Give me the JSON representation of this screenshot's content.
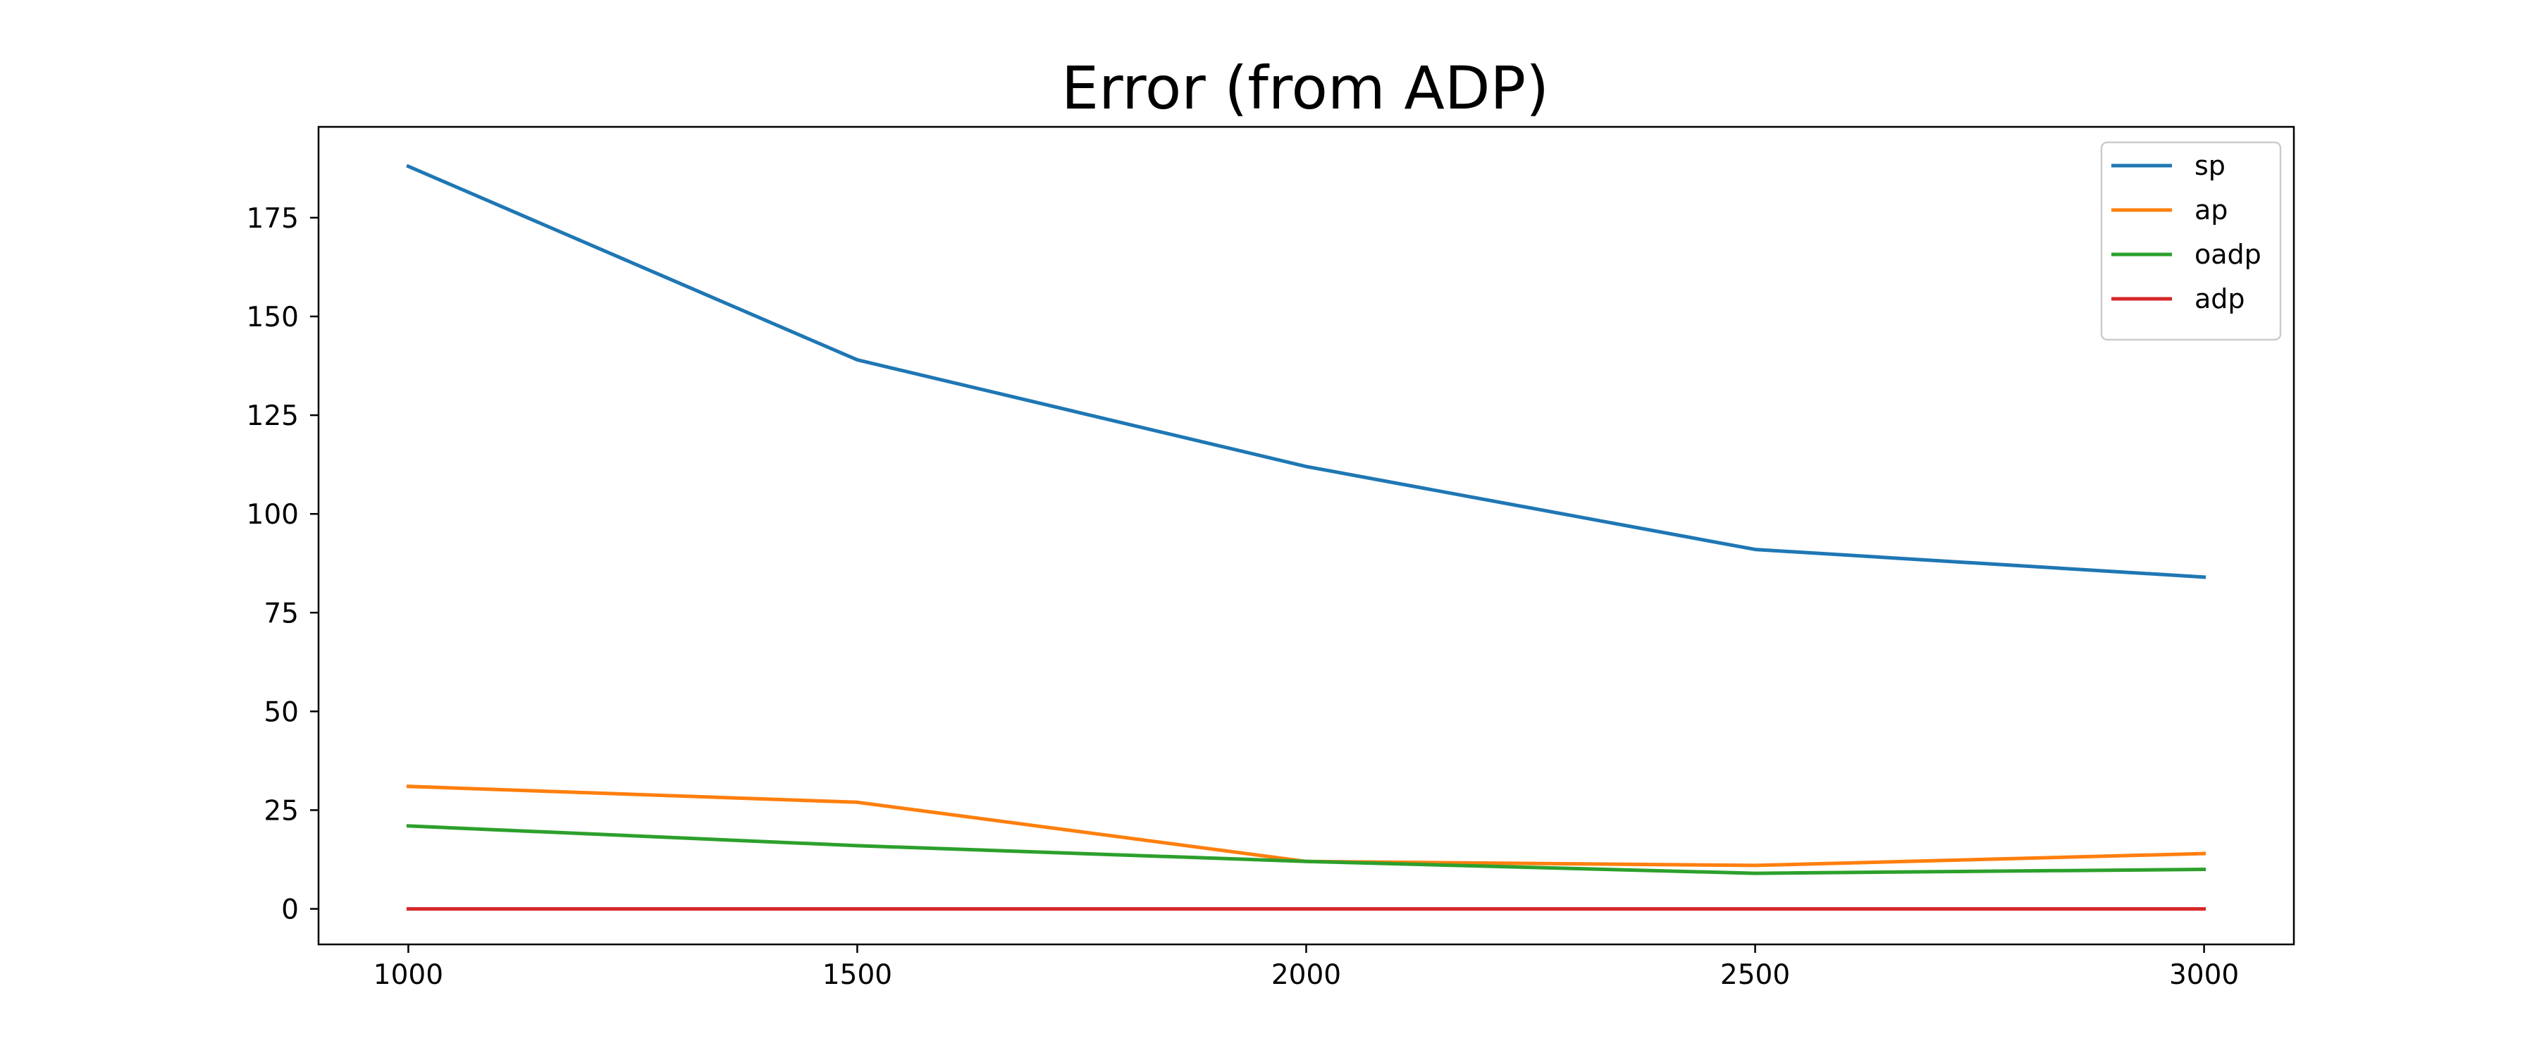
{
  "chart_data": {
    "type": "line",
    "title": "Error (from ADP)",
    "xlabel": "",
    "ylabel": "",
    "x": [
      1000,
      1500,
      2000,
      2500,
      3000
    ],
    "xlim": [
      900,
      3100
    ],
    "ylim": [
      -9,
      198
    ],
    "xticks": [
      "1000",
      "1500",
      "2000",
      "2500",
      "3000"
    ],
    "yticks": [
      "0",
      "25",
      "50",
      "75",
      "100",
      "125",
      "150",
      "175"
    ],
    "grid": false,
    "legend_position": "top-right",
    "series": [
      {
        "name": "sp",
        "color": "#1f77b4",
        "values": [
          188,
          139,
          112,
          91,
          84
        ]
      },
      {
        "name": "ap",
        "color": "#ff7f0e",
        "values": [
          31,
          27,
          12,
          11,
          14
        ]
      },
      {
        "name": "oadp",
        "color": "#2ca02c",
        "values": [
          21,
          16,
          12,
          9,
          10
        ]
      },
      {
        "name": "adp",
        "color": "#d62728",
        "values": [
          0,
          0,
          0,
          0,
          0
        ]
      }
    ]
  }
}
